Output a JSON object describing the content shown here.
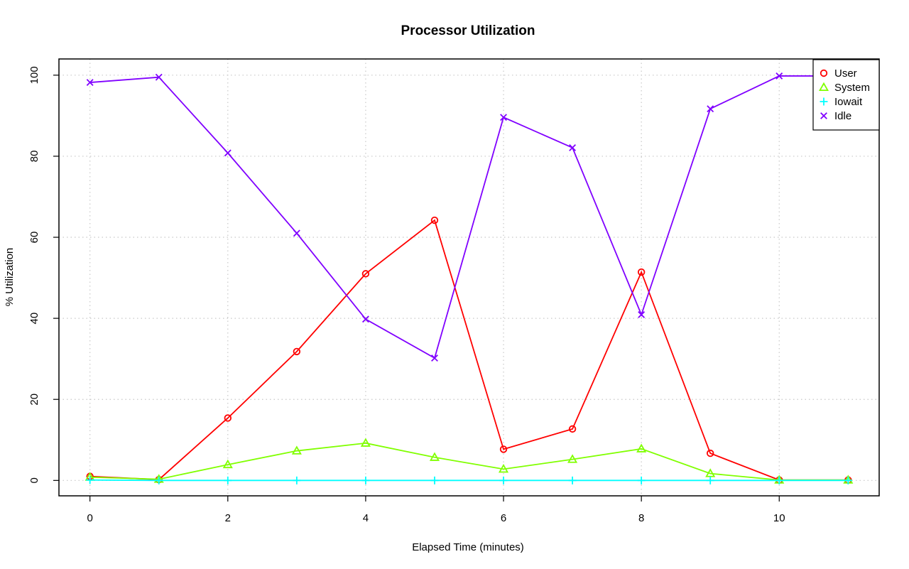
{
  "chart_data": {
    "type": "line",
    "title": "Processor Utilization",
    "xlabel": "Elapsed Time (minutes)",
    "ylabel": "% Utilization",
    "x": [
      0,
      1,
      2,
      3,
      4,
      5,
      6,
      7,
      8,
      9,
      10,
      11
    ],
    "xlim": [
      -0.45,
      11.45
    ],
    "ylim": [
      -3.8,
      104
    ],
    "xticks": [
      0,
      2,
      4,
      6,
      8,
      10
    ],
    "yticks": [
      0,
      20,
      40,
      60,
      80,
      100
    ],
    "grid": true,
    "legend_position": "top-right",
    "series": [
      {
        "name": "User",
        "color": "#ff0000",
        "marker": "circle",
        "values": [
          1.0,
          0.2,
          15.4,
          31.8,
          51.0,
          64.2,
          7.7,
          12.7,
          51.4,
          6.7,
          0.1,
          0.1
        ]
      },
      {
        "name": "System",
        "color": "#80ff00",
        "marker": "triangle",
        "values": [
          0.8,
          0.3,
          3.9,
          7.3,
          9.2,
          5.7,
          2.8,
          5.2,
          7.8,
          1.7,
          0.1,
          0.1
        ]
      },
      {
        "name": "Iowait",
        "color": "#00ffff",
        "marker": "plus",
        "values": [
          0.1,
          0.0,
          0.0,
          0.0,
          0.0,
          0.0,
          0.0,
          0.0,
          0.0,
          0.0,
          0.0,
          0.0
        ]
      },
      {
        "name": "Idle",
        "color": "#8000ff",
        "marker": "cross",
        "values": [
          98.2,
          99.5,
          80.8,
          61.0,
          39.8,
          30.2,
          89.6,
          82.1,
          40.9,
          91.7,
          99.8,
          99.8
        ]
      }
    ]
  }
}
